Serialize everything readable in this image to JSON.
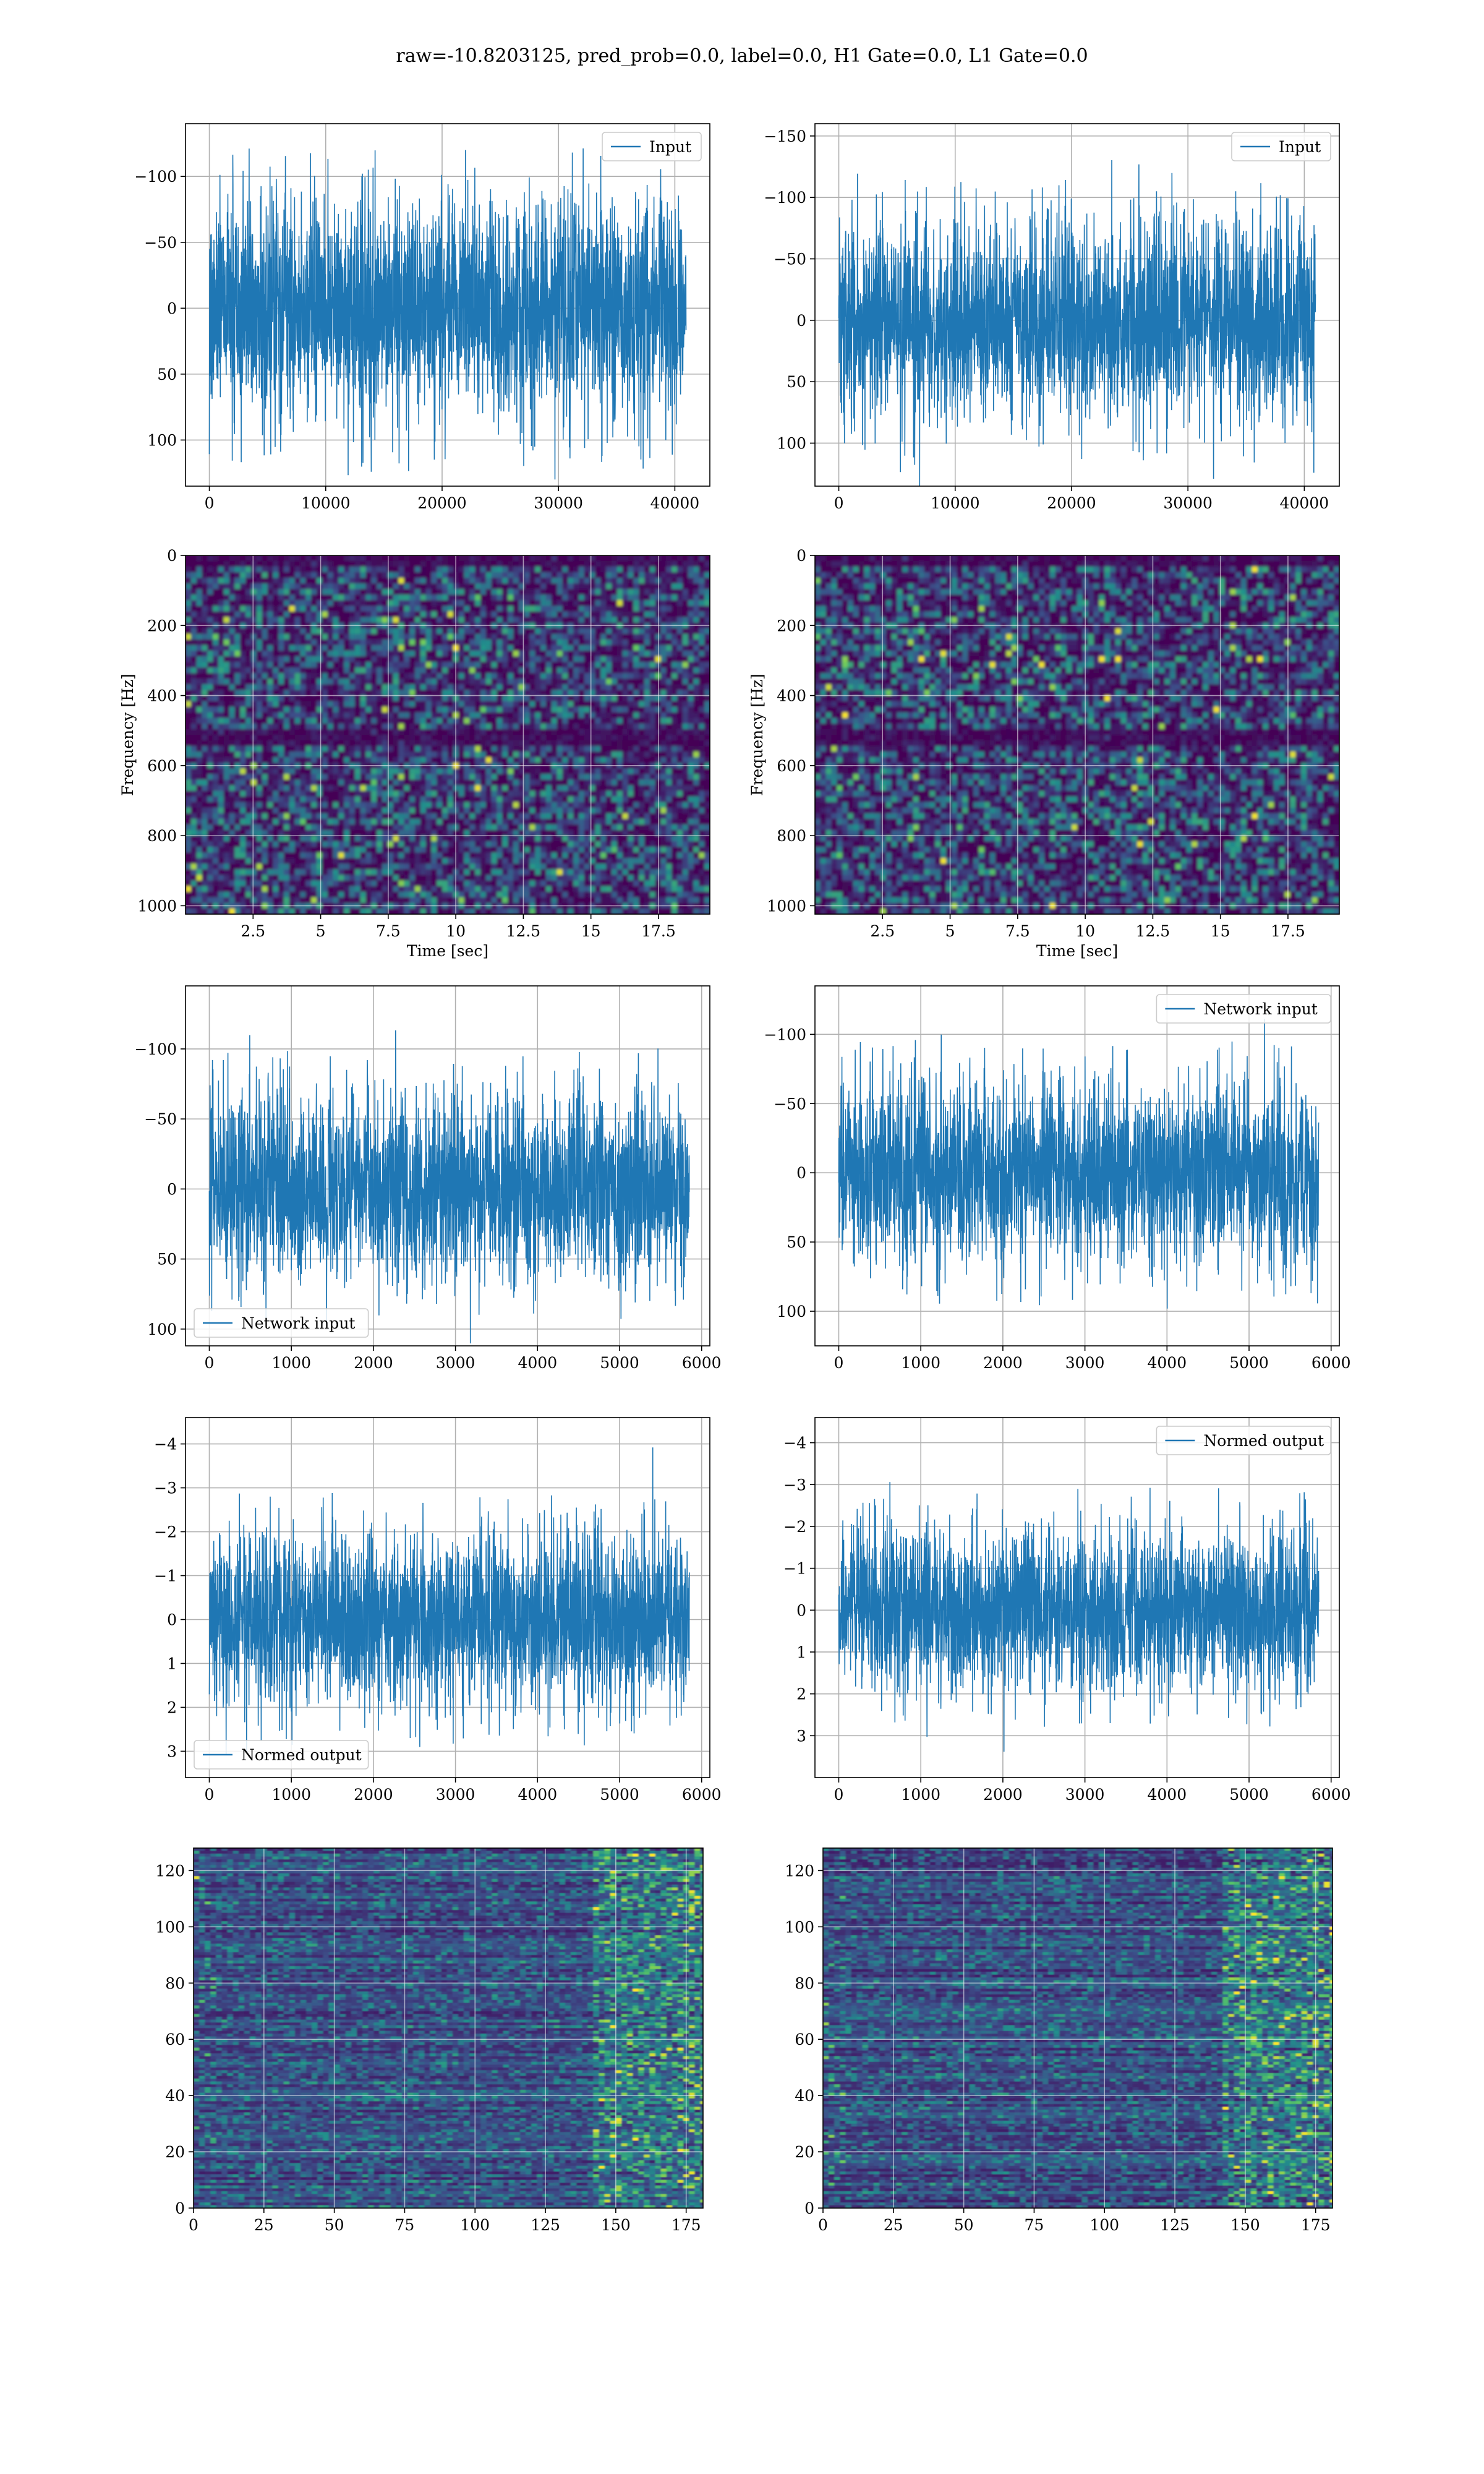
{
  "figure": {
    "title": "raw=-10.8203125, pred_prob=0.0, label=0.0, H1 Gate=0.0, L1 Gate=0.0"
  },
  "colors": {
    "line": "#1f77b4",
    "grid": "#b0b0b0",
    "heat_low": "#440154",
    "heat_mid": "#21918c",
    "heat_high": "#fde725"
  },
  "chart_data": [
    {
      "id": "input-h1",
      "type": "line",
      "series": [
        {
          "name": "Input"
        }
      ],
      "xlim": [
        -2048,
        43008
      ],
      "ylim": [
        -140,
        135
      ],
      "xticks": [
        0,
        10000,
        20000,
        30000,
        40000
      ],
      "yticks": [
        -100,
        -50,
        0,
        50,
        100
      ],
      "x_range": [
        0,
        40960
      ],
      "amp": 42,
      "max_abs": 130,
      "legend": "upper right",
      "grid": true
    },
    {
      "id": "input-l1",
      "type": "line",
      "series": [
        {
          "name": "Input"
        }
      ],
      "xlim": [
        -2048,
        43008
      ],
      "ylim": [
        -160,
        135
      ],
      "xticks": [
        0,
        10000,
        20000,
        30000,
        40000
      ],
      "yticks": [
        -150,
        -100,
        -50,
        0,
        50,
        100
      ],
      "x_range": [
        0,
        40960
      ],
      "amp": 40,
      "max_abs": 145,
      "legend": "upper right",
      "grid": true
    },
    {
      "id": "spec-h1",
      "type": "heatmap",
      "colormap": "viridis",
      "xlim": [
        0,
        19.4
      ],
      "ylim": [
        0,
        1024
      ],
      "xticks": [
        2.5,
        5.0,
        7.5,
        10.0,
        12.5,
        15.0,
        17.5
      ],
      "yticks": [
        0,
        200,
        400,
        600,
        800,
        1000
      ],
      "xlabel": "Time [sec]",
      "ylabel": "Frequency [Hz]",
      "grid": true
    },
    {
      "id": "spec-l1",
      "type": "heatmap",
      "colormap": "viridis",
      "xlim": [
        0,
        19.4
      ],
      "ylim": [
        0,
        1024
      ],
      "xticks": [
        2.5,
        5.0,
        7.5,
        10.0,
        12.5,
        15.0,
        17.5
      ],
      "yticks": [
        0,
        200,
        400,
        600,
        800,
        1000
      ],
      "xlabel": "Time [sec]",
      "ylabel": "Frequency [Hz]",
      "grid": true
    },
    {
      "id": "network-h1",
      "type": "line",
      "series": [
        {
          "name": "Network input"
        }
      ],
      "xlim": [
        -290,
        6100
      ],
      "ylim": [
        -145,
        112
      ],
      "xticks": [
        0,
        1000,
        2000,
        3000,
        4000,
        5000,
        6000
      ],
      "yticks": [
        -100,
        -50,
        0,
        50,
        100
      ],
      "x_range": [
        0,
        5850
      ],
      "amp": 34,
      "max_abs": 130,
      "legend": "lower left",
      "grid": true
    },
    {
      "id": "network-l1",
      "type": "line",
      "series": [
        {
          "name": "Network input"
        }
      ],
      "xlim": [
        -290,
        6100
      ],
      "ylim": [
        -135,
        125
      ],
      "xticks": [
        0,
        1000,
        2000,
        3000,
        4000,
        5000,
        6000
      ],
      "yticks": [
        -100,
        -50,
        0,
        50,
        100
      ],
      "x_range": [
        0,
        5850
      ],
      "amp": 33,
      "max_abs": 125,
      "legend": "upper right",
      "grid": true
    },
    {
      "id": "normed-h1",
      "type": "line",
      "series": [
        {
          "name": "Normed output"
        }
      ],
      "xlim": [
        -290,
        6100
      ],
      "ylim": [
        -4.6,
        3.6
      ],
      "xticks": [
        0,
        1000,
        2000,
        3000,
        4000,
        5000,
        6000
      ],
      "yticks": [
        -4,
        -3,
        -2,
        -1,
        0,
        1,
        2,
        3
      ],
      "x_range": [
        0,
        5850
      ],
      "amp": 1.0,
      "max_abs": 4.3,
      "legend": "lower left",
      "grid": true
    },
    {
      "id": "normed-l1",
      "type": "line",
      "series": [
        {
          "name": "Normed output"
        }
      ],
      "xlim": [
        -290,
        6100
      ],
      "ylim": [
        -4.6,
        4.0
      ],
      "xticks": [
        0,
        1000,
        2000,
        3000,
        4000,
        5000,
        6000
      ],
      "yticks": [
        -4,
        -3,
        -2,
        -1,
        0,
        1,
        2,
        3
      ],
      "x_range": [
        0,
        5850
      ],
      "amp": 1.0,
      "max_abs": 4.2,
      "legend": "upper right",
      "grid": true
    },
    {
      "id": "feature-h1",
      "type": "heatmap",
      "colormap": "viridis",
      "xlim": [
        0,
        181
      ],
      "ylim": [
        128,
        0
      ],
      "xticks": [
        0,
        25,
        50,
        75,
        100,
        125,
        150,
        175
      ],
      "yticks": [
        0,
        20,
        40,
        60,
        80,
        100,
        120
      ],
      "grid": true
    },
    {
      "id": "feature-l1",
      "type": "heatmap",
      "colormap": "viridis",
      "xlim": [
        0,
        181
      ],
      "ylim": [
        128,
        0
      ],
      "xticks": [
        0,
        25,
        50,
        75,
        100,
        125,
        150,
        175
      ],
      "yticks": [
        0,
        20,
        40,
        60,
        80,
        100,
        120
      ],
      "grid": true
    }
  ]
}
